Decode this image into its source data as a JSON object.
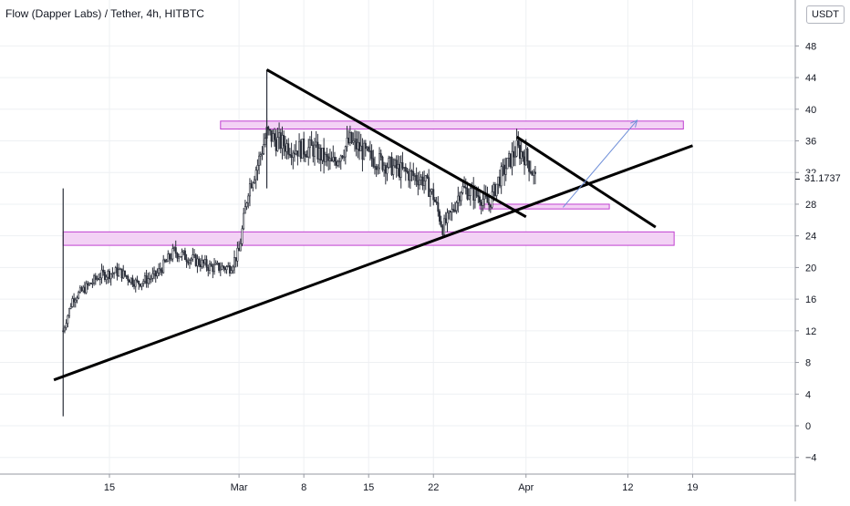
{
  "title": "Flow (Dapper Labs) / Tether, 4h, HITBTC",
  "currency": "USDT",
  "last_price": "31.1737",
  "colors": {
    "candle": "#2a2e39",
    "trendline": "#000000",
    "zone_fill": "#f3d2f5",
    "zone_stroke": "#c040d0",
    "arrow": "#6f8fd8",
    "grid": "#eef0f3",
    "axis_text": "#131722"
  },
  "chart_data": {
    "type": "candlestick",
    "y_ticks": [
      48,
      44,
      40,
      36,
      32,
      28,
      24,
      20,
      16,
      12,
      8,
      4,
      0,
      -4
    ],
    "x_ticks": [
      "15",
      "Mar",
      "8",
      "15",
      "22",
      "Apr",
      "12",
      "19"
    ],
    "ylim": [
      -6,
      52
    ],
    "grid": true,
    "close_path": [
      [
        "Feb 10",
        12
      ],
      [
        "Feb 11",
        16
      ],
      [
        "Feb 14",
        19
      ],
      [
        "Feb 16",
        19.5
      ],
      [
        "Feb 18",
        18
      ],
      [
        "Feb 20",
        19
      ],
      [
        "Feb 22",
        22
      ],
      [
        "Feb 24",
        21
      ],
      [
        "Feb 26",
        20
      ],
      [
        "Feb 28",
        20
      ],
      [
        "Mar 1",
        22
      ],
      [
        "Mar 2",
        30
      ],
      [
        "Mar 3",
        33
      ],
      [
        "Mar 4",
        37
      ],
      [
        "Mar 5",
        36
      ],
      [
        "Mar 7",
        35
      ],
      [
        "Mar 9",
        35
      ],
      [
        "Mar 11",
        33
      ],
      [
        "Mar 13",
        36
      ],
      [
        "Mar 15",
        34
      ],
      [
        "Mar 17",
        33
      ],
      [
        "Mar 19",
        32
      ],
      [
        "Mar 21",
        31
      ],
      [
        "Mar 22",
        29
      ],
      [
        "Mar 23",
        25
      ],
      [
        "Mar 24",
        27
      ],
      [
        "Mar 25",
        30
      ],
      [
        "Mar 27",
        29
      ],
      [
        "Mar 28",
        28
      ],
      [
        "Mar 29",
        31
      ],
      [
        "Mar 30",
        33
      ],
      [
        "Mar 31",
        35
      ],
      [
        "Apr 1",
        34
      ],
      [
        "Apr 2",
        31.17
      ]
    ],
    "wicks": [
      [
        "Feb 10",
        1.2,
        30
      ],
      [
        "Mar 4",
        45,
        30
      ]
    ],
    "annotations": {
      "zones": [
        {
          "name": "upper-resistance-zone",
          "from": "Feb 27",
          "to": "Apr 18",
          "y_low": 37.5,
          "y_high": 38.5
        },
        {
          "name": "lower-support-zone",
          "from": "Feb 10",
          "to": "Apr 17",
          "y_low": 22.8,
          "y_high": 24.5
        },
        {
          "name": "retest-zone",
          "from": "Mar 27",
          "to": "Apr 10",
          "y_low": 27.4,
          "y_high": 28.0
        }
      ],
      "trendlines": [
        {
          "name": "rising-support-trendline",
          "from": [
            "Feb 9",
            5.8
          ],
          "to": [
            "Apr 19",
            35.4
          ]
        },
        {
          "name": "falling-resistance-trendline",
          "from": [
            "Mar 4",
            45
          ],
          "to": [
            "Apr 1",
            26.4
          ]
        },
        {
          "name": "short-falling-trendline",
          "from": [
            "Mar 31",
            36.5
          ],
          "to": [
            "Apr 15",
            25.1
          ]
        }
      ],
      "projection_arrow": {
        "from": [
          "Apr 5",
          27.6
        ],
        "to": [
          "Apr 13",
          38.6
        ]
      }
    }
  }
}
